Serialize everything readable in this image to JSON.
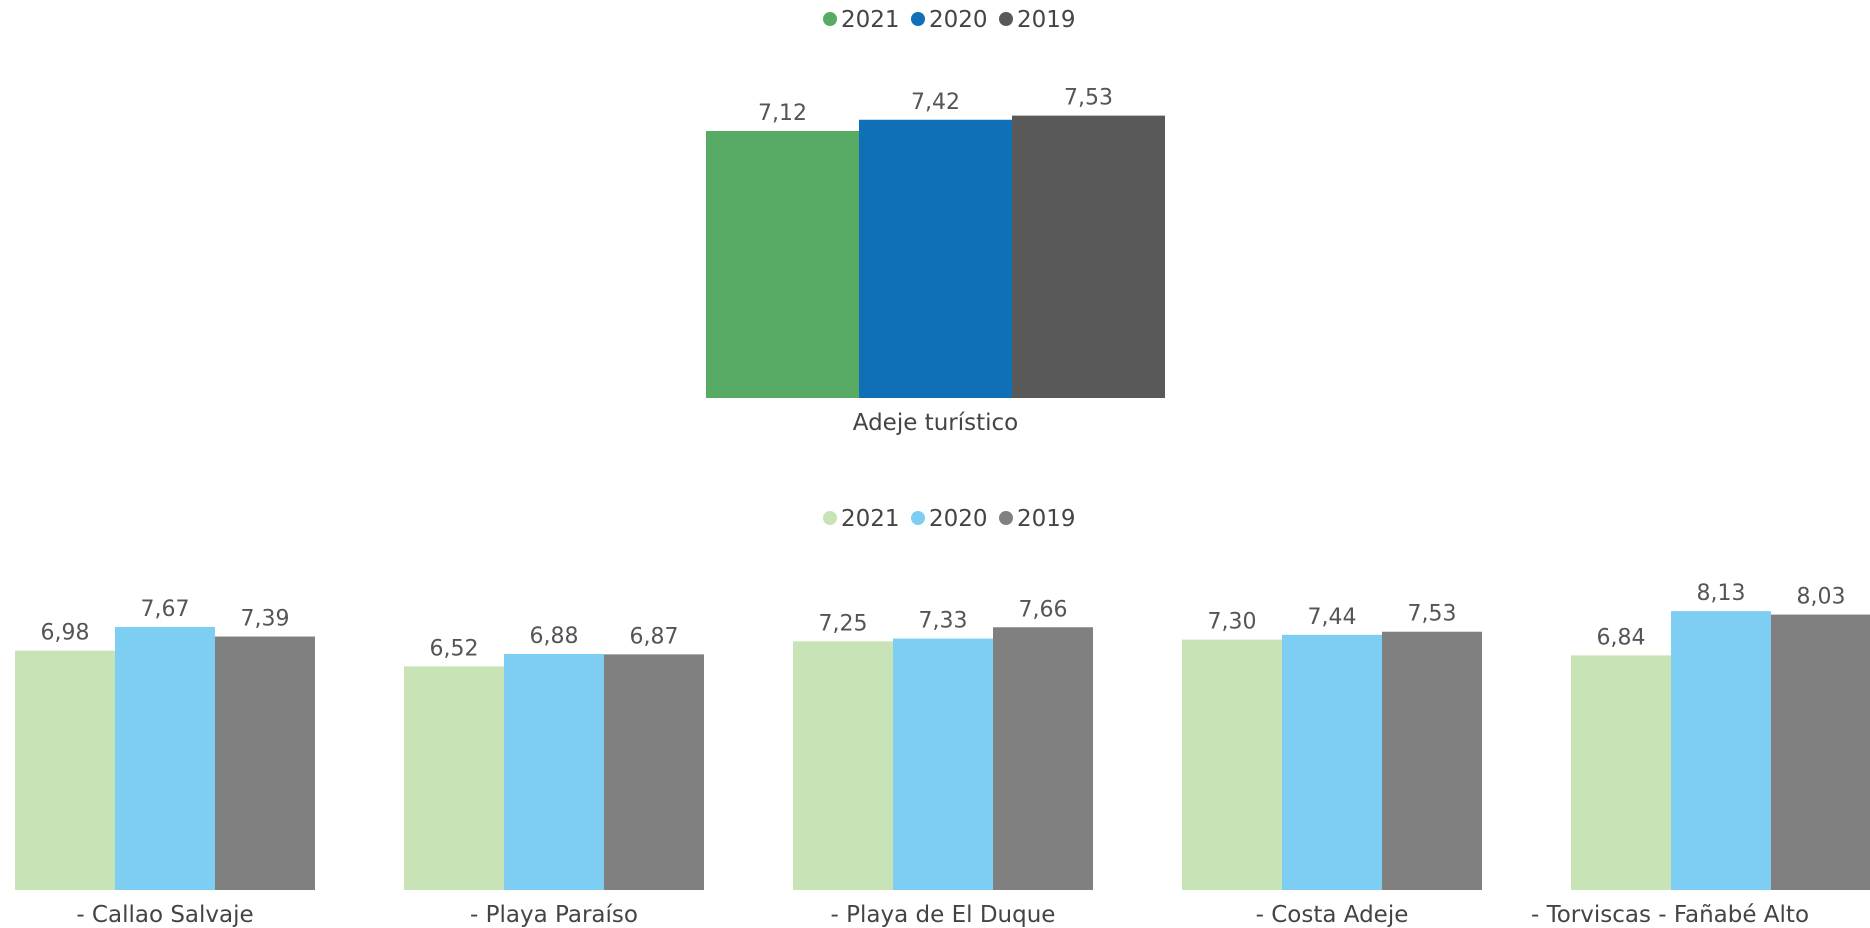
{
  "chart_data": [
    {
      "type": "bar",
      "categories": [
        "Adeje turístico"
      ],
      "series": [
        {
          "name": "2021",
          "values": [
            7.12
          ],
          "labels": [
            "7,12"
          ],
          "color": "#57ab65"
        },
        {
          "name": "2020",
          "values": [
            7.42
          ],
          "labels": [
            "7,42"
          ],
          "color": "#0f70b8"
        },
        {
          "name": "2019",
          "values": [
            7.53
          ],
          "labels": [
            "7,53"
          ],
          "color": "#595959"
        }
      ],
      "legend_position": "top-center",
      "legend": [
        "2021",
        "2020",
        "2019"
      ],
      "grid": false
    },
    {
      "type": "bar",
      "categories": [
        "- Callao Salvaje",
        "- Playa Paraíso",
        "- Playa de El Duque",
        "- Costa Adeje",
        "- Torviscas - Fañabé Alto"
      ],
      "series": [
        {
          "name": "2021",
          "values": [
            6.98,
            6.52,
            7.25,
            7.3,
            6.84
          ],
          "labels": [
            "6,98",
            "6,52",
            "7,25",
            "7,30",
            "6,84"
          ],
          "color": "#c8e4b7"
        },
        {
          "name": "2020",
          "values": [
            7.67,
            6.88,
            7.33,
            7.44,
            8.13
          ],
          "labels": [
            "7,67",
            "6,88",
            "7,33",
            "7,44",
            "8,13"
          ],
          "color": "#7ecef4"
        },
        {
          "name": "2019",
          "values": [
            7.39,
            6.87,
            7.66,
            7.53,
            8.03
          ],
          "labels": [
            "7,39",
            "6,87",
            "7,66",
            "7,53",
            "8,03"
          ],
          "color": "#808080"
        }
      ],
      "legend_position": "top-center",
      "legend": [
        "2021",
        "2020",
        "2019"
      ],
      "grid": false
    }
  ]
}
